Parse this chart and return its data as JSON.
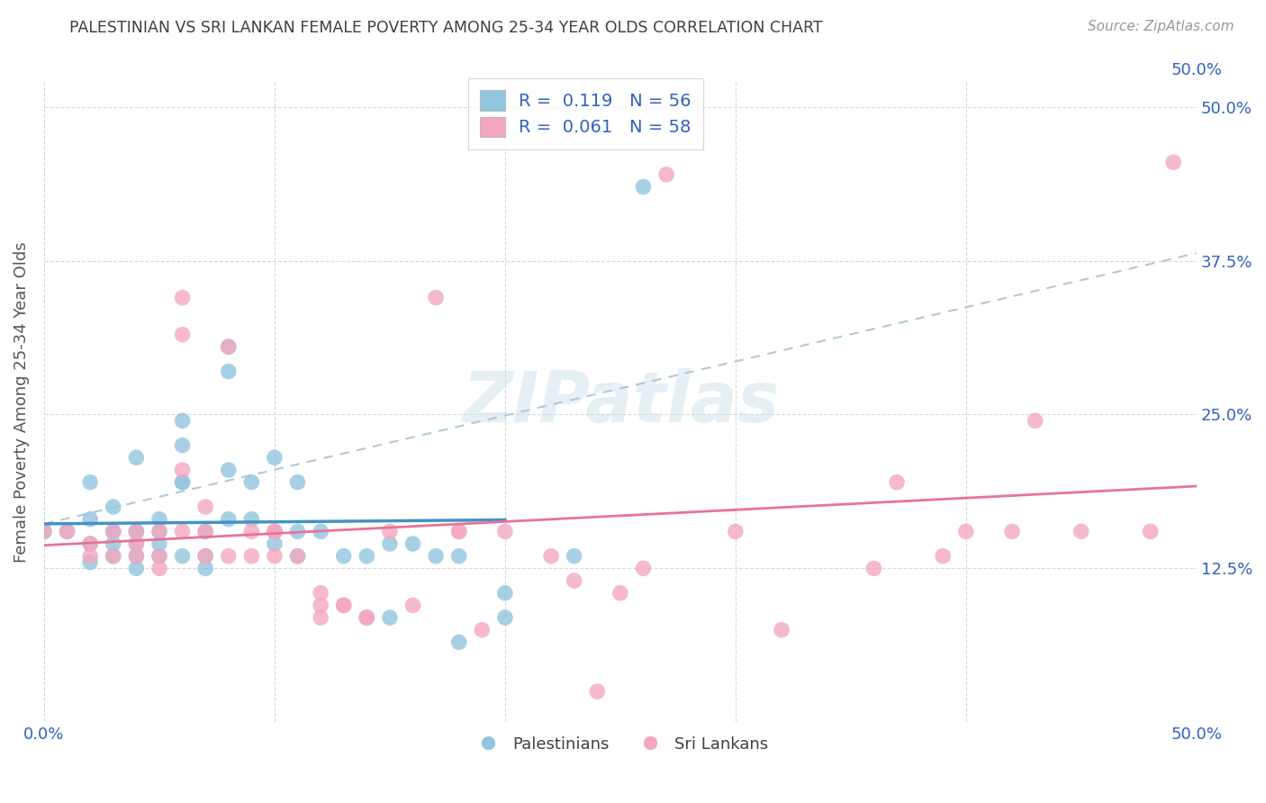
{
  "title": "PALESTINIAN VS SRI LANKAN FEMALE POVERTY AMONG 25-34 YEAR OLDS CORRELATION CHART",
  "source": "Source: ZipAtlas.com",
  "ylabel": "Female Poverty Among 25-34 Year Olds",
  "xlim": [
    0.0,
    0.5
  ],
  "ylim": [
    0.0,
    0.52
  ],
  "yticks": [
    0.0,
    0.125,
    0.25,
    0.375,
    0.5
  ],
  "right_ytick_labels": [
    "",
    "12.5%",
    "25.0%",
    "37.5%",
    "50.0%"
  ],
  "xticks": [
    0.0,
    0.1,
    0.2,
    0.3,
    0.4,
    0.5
  ],
  "xtick_labels": [
    "0.0%",
    "",
    "",
    "",
    "",
    "50.0%"
  ],
  "r_palestinian": 0.119,
  "n_palestinian": 56,
  "r_srilankan": 0.061,
  "n_srilankan": 58,
  "color_palestinian": "#92c5de",
  "color_srilankan": "#f4a6c0",
  "line_color_palestinian": "#4393c3",
  "line_color_srilankan": "#e8729a",
  "dashed_line_color": "#b0c8d8",
  "legend_text_color": "#3060c0",
  "watermark": "ZIPatlas",
  "palestinian_x": [
    0.0,
    0.01,
    0.02,
    0.02,
    0.02,
    0.02,
    0.03,
    0.03,
    0.03,
    0.03,
    0.03,
    0.04,
    0.04,
    0.04,
    0.04,
    0.04,
    0.04,
    0.05,
    0.05,
    0.05,
    0.05,
    0.06,
    0.06,
    0.06,
    0.06,
    0.06,
    0.07,
    0.07,
    0.07,
    0.08,
    0.08,
    0.08,
    0.08,
    0.09,
    0.09,
    0.1,
    0.1,
    0.1,
    0.1,
    0.11,
    0.11,
    0.11,
    0.12,
    0.13,
    0.14,
    0.14,
    0.15,
    0.15,
    0.16,
    0.17,
    0.18,
    0.18,
    0.2,
    0.2,
    0.23,
    0.26
  ],
  "palestinian_y": [
    0.155,
    0.155,
    0.195,
    0.165,
    0.145,
    0.13,
    0.175,
    0.155,
    0.145,
    0.135,
    0.155,
    0.155,
    0.215,
    0.145,
    0.135,
    0.125,
    0.155,
    0.145,
    0.135,
    0.155,
    0.165,
    0.135,
    0.195,
    0.195,
    0.225,
    0.245,
    0.135,
    0.155,
    0.125,
    0.305,
    0.285,
    0.205,
    0.165,
    0.165,
    0.195,
    0.155,
    0.145,
    0.215,
    0.155,
    0.155,
    0.135,
    0.195,
    0.155,
    0.135,
    0.135,
    0.085,
    0.145,
    0.085,
    0.145,
    0.135,
    0.065,
    0.135,
    0.105,
    0.085,
    0.135,
    0.435
  ],
  "srilankan_x": [
    0.0,
    0.01,
    0.02,
    0.02,
    0.03,
    0.03,
    0.04,
    0.04,
    0.04,
    0.05,
    0.05,
    0.05,
    0.06,
    0.06,
    0.06,
    0.06,
    0.07,
    0.07,
    0.07,
    0.08,
    0.08,
    0.09,
    0.09,
    0.1,
    0.1,
    0.1,
    0.11,
    0.12,
    0.12,
    0.12,
    0.13,
    0.13,
    0.14,
    0.14,
    0.15,
    0.16,
    0.17,
    0.18,
    0.18,
    0.19,
    0.2,
    0.22,
    0.23,
    0.24,
    0.25,
    0.26,
    0.27,
    0.3,
    0.32,
    0.36,
    0.37,
    0.39,
    0.4,
    0.42,
    0.43,
    0.45,
    0.48,
    0.49
  ],
  "srilankan_y": [
    0.155,
    0.155,
    0.145,
    0.135,
    0.155,
    0.135,
    0.135,
    0.155,
    0.145,
    0.155,
    0.125,
    0.135,
    0.155,
    0.205,
    0.315,
    0.345,
    0.135,
    0.175,
    0.155,
    0.135,
    0.305,
    0.135,
    0.155,
    0.135,
    0.155,
    0.155,
    0.135,
    0.095,
    0.085,
    0.105,
    0.095,
    0.095,
    0.085,
    0.085,
    0.155,
    0.095,
    0.345,
    0.155,
    0.155,
    0.075,
    0.155,
    0.135,
    0.115,
    0.025,
    0.105,
    0.125,
    0.445,
    0.155,
    0.075,
    0.125,
    0.195,
    0.135,
    0.155,
    0.155,
    0.245,
    0.155,
    0.155,
    0.455
  ]
}
